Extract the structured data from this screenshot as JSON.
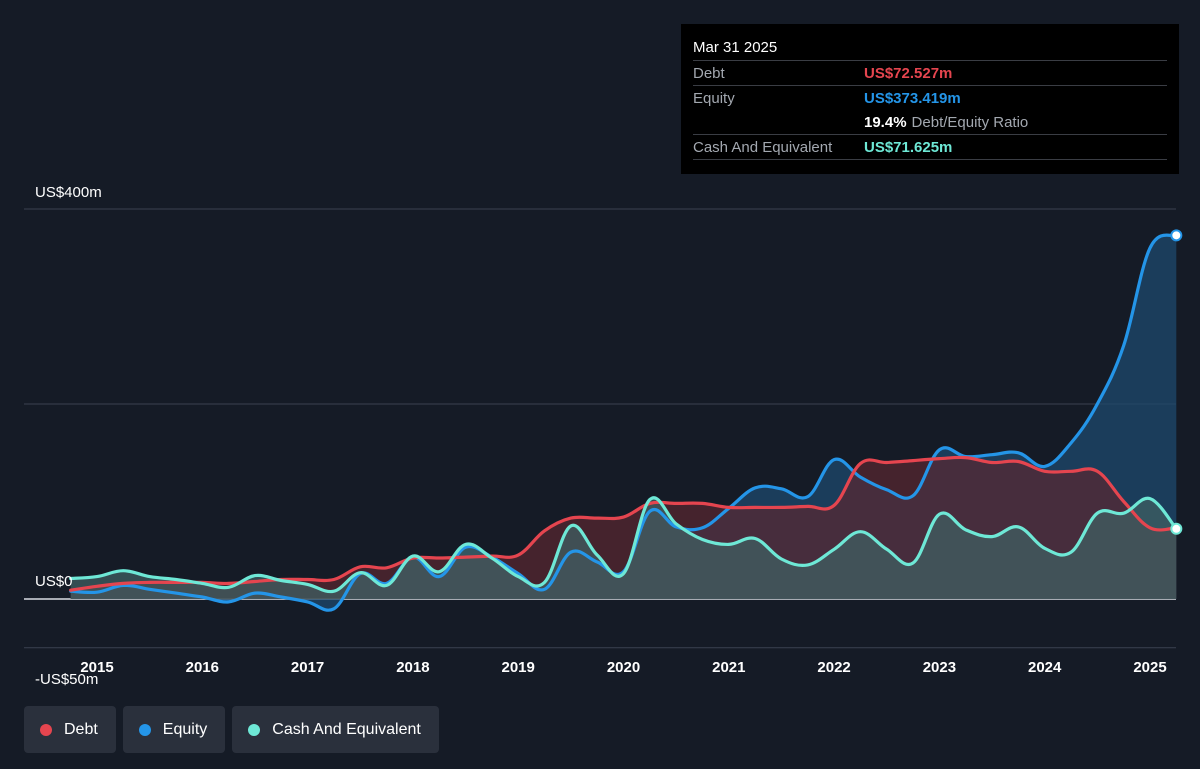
{
  "tooltip": {
    "date": "Mar 31 2025",
    "debt_label": "Debt",
    "debt_value": "US$72.527m",
    "equity_label": "Equity",
    "equity_value": "US$373.419m",
    "ratio_value": "19.4%",
    "ratio_label": "Debt/Equity Ratio",
    "cash_label": "Cash And Equivalent",
    "cash_value": "US$71.625m"
  },
  "legend": [
    {
      "label": "Debt",
      "color": "#e5454f"
    },
    {
      "label": "Equity",
      "color": "#2495e8"
    },
    {
      "label": "Cash And Equivalent",
      "color": "#6ee8d6"
    }
  ],
  "chart_data": {
    "type": "line",
    "y_ticks": [
      {
        "value": 400,
        "label": "US$400m"
      },
      {
        "value": 0,
        "label": "US$0"
      },
      {
        "value": -50,
        "label": "-US$50m"
      }
    ],
    "ylim": [
      -50,
      400
    ],
    "x_ticks": [
      "2015",
      "2016",
      "2017",
      "2018",
      "2019",
      "2020",
      "2021",
      "2022",
      "2023",
      "2024",
      "2025"
    ],
    "colors": {
      "debt": "#e5454f",
      "equity": "#2495e8",
      "cash": "#6ee8d6"
    },
    "series": [
      {
        "name": "Debt",
        "key": "debt",
        "x": [
          2014.75,
          2015,
          2015.25,
          2015.5,
          2015.75,
          2016,
          2016.25,
          2016.5,
          2016.75,
          2017,
          2017.25,
          2017.5,
          2017.75,
          2018,
          2018.25,
          2018.5,
          2018.75,
          2019,
          2019.25,
          2019.5,
          2019.75,
          2020,
          2020.25,
          2020.5,
          2020.75,
          2021,
          2021.25,
          2021.5,
          2021.75,
          2022,
          2022.25,
          2022.5,
          2022.75,
          2023,
          2023.25,
          2023.5,
          2023.75,
          2024,
          2024.25,
          2024.5,
          2024.75,
          2025,
          2025.25
        ],
        "values": [
          9,
          13,
          16,
          17,
          17,
          17,
          16,
          18,
          20,
          20,
          20,
          33,
          32,
          42,
          42,
          43,
          44,
          45,
          70,
          83,
          83,
          84,
          98,
          98,
          98,
          94,
          94,
          94,
          95,
          96,
          139,
          140,
          142,
          144,
          145,
          140,
          141,
          131,
          131,
          131,
          100,
          73,
          73
        ]
      },
      {
        "name": "Equity",
        "key": "equity",
        "x": [
          2014.75,
          2015,
          2015.25,
          2015.5,
          2015.75,
          2016,
          2016.25,
          2016.5,
          2016.75,
          2017,
          2017.25,
          2017.5,
          2017.75,
          2018,
          2018.25,
          2018.5,
          2018.75,
          2019,
          2019.25,
          2019.5,
          2019.75,
          2020,
          2020.25,
          2020.5,
          2020.75,
          2021,
          2021.25,
          2021.5,
          2021.75,
          2022,
          2022.25,
          2022.5,
          2022.75,
          2023,
          2023.25,
          2023.5,
          2023.75,
          2024,
          2024.25,
          2024.5,
          2024.75,
          2025,
          2025.25
        ],
        "values": [
          8,
          7,
          14,
          10,
          6,
          2,
          -3,
          6,
          2,
          -3,
          -10,
          26,
          16,
          43,
          23,
          53,
          43,
          26,
          10,
          48,
          38,
          28,
          90,
          74,
          73,
          93,
          114,
          113,
          105,
          143,
          125,
          112,
          106,
          153,
          146,
          148,
          150,
          136,
          160,
          200,
          260,
          360,
          373
        ]
      },
      {
        "name": "Cash And Equivalent",
        "key": "cash",
        "x": [
          2014.75,
          2015,
          2015.25,
          2015.5,
          2015.75,
          2016,
          2016.25,
          2016.5,
          2016.75,
          2017,
          2017.25,
          2017.5,
          2017.75,
          2018,
          2018.25,
          2018.5,
          2018.75,
          2019,
          2019.25,
          2019.5,
          2019.75,
          2020,
          2020.25,
          2020.5,
          2020.75,
          2021,
          2021.25,
          2021.5,
          2021.75,
          2022,
          2022.25,
          2022.5,
          2022.75,
          2023,
          2023.25,
          2023.5,
          2023.75,
          2024,
          2024.25,
          2024.5,
          2024.75,
          2025,
          2025.25
        ],
        "values": [
          21,
          23,
          29,
          23,
          20,
          16,
          12,
          24,
          19,
          15,
          8,
          27,
          14,
          44,
          28,
          56,
          42,
          23,
          17,
          75,
          45,
          26,
          102,
          77,
          61,
          56,
          62,
          41,
          35,
          51,
          69,
          51,
          37,
          87,
          71,
          64,
          74,
          52,
          48,
          88,
          88,
          103,
          72
        ]
      }
    ]
  }
}
